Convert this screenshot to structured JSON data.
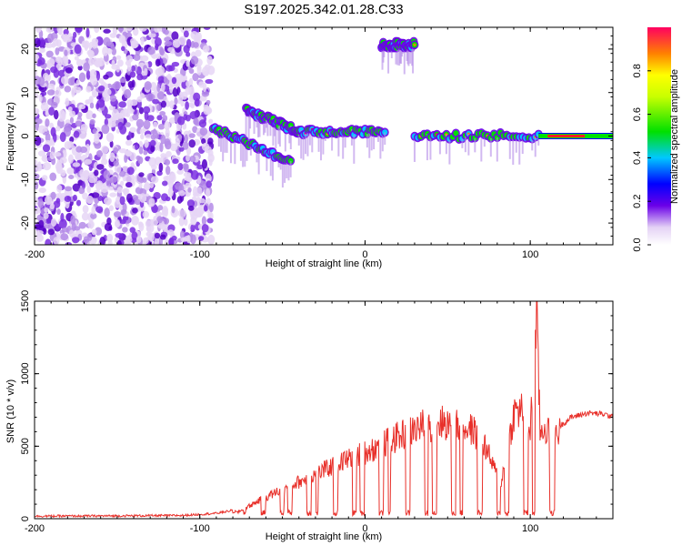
{
  "title": "S197.2025.342.01.28.C33",
  "chart_data": [
    {
      "type": "heatmap",
      "name": "spectrogram",
      "xlabel": "Height of straight line (km)",
      "ylabel": "Frequency (Hz)",
      "xlim": [
        -200,
        150
      ],
      "ylim": [
        -25,
        25
      ],
      "xticks": [
        -200,
        -100,
        0,
        100
      ],
      "yticks": [
        -20,
        -10,
        0,
        10,
        20
      ],
      "colorbar": {
        "label": "Normalized spectral amplitude",
        "range": [
          0,
          1
        ],
        "ticks": [
          0.0,
          0.2,
          0.4,
          0.6,
          0.8
        ]
      },
      "features": [
        {
          "name": "noise-field",
          "x_range": [
            -200,
            -93
          ],
          "f_range": [
            -25,
            25
          ],
          "level": 0.1
        },
        {
          "name": "tone-segment-a",
          "x_range": [
            -92,
            -45
          ],
          "f_start": 2,
          "f_end": -6,
          "level": 0.3
        },
        {
          "name": "tone-segment-b",
          "x_range": [
            -72,
            -40
          ],
          "f_start": 6,
          "f_end": 1,
          "level": 0.3
        },
        {
          "name": "tone-segment-c",
          "x_range": [
            -40,
            12
          ],
          "f_start": 1,
          "f_end": 1,
          "level": 0.35
        },
        {
          "name": "tone-segment-d",
          "x_range": [
            10,
            30
          ],
          "f_start": 21,
          "f_end": 21,
          "level": 0.4
        },
        {
          "name": "tone-segment-e",
          "x_range": [
            30,
            105
          ],
          "f_start": 0,
          "f_end": 0,
          "level": 0.3
        },
        {
          "name": "tone-segment-f",
          "x_range": [
            105,
            150
          ],
          "f_start": 0,
          "f_end": 0,
          "level": 1.0
        }
      ]
    },
    {
      "type": "line",
      "name": "snr",
      "xlabel": "Height of straight line (km)",
      "ylabel": "SNR (10 * v/v)",
      "xlim": [
        -200,
        150
      ],
      "ylim": [
        0,
        1500
      ],
      "xticks": [
        -200,
        -100,
        0,
        100
      ],
      "yticks": [
        0,
        500,
        1000,
        1500
      ],
      "color": "#e8302a",
      "series": [
        {
          "name": "SNR",
          "x": [
            -200,
            -150,
            -110,
            -90,
            -75,
            -65,
            -55,
            -45,
            -35,
            -25,
            -15,
            -5,
            5,
            15,
            25,
            35,
            45,
            55,
            65,
            72,
            78,
            82,
            86,
            90,
            95,
            100,
            104,
            106,
            108,
            112,
            115,
            118,
            125,
            135,
            145,
            150
          ],
          "y": [
            10,
            12,
            15,
            30,
            60,
            130,
            190,
            250,
            300,
            360,
            420,
            470,
            520,
            580,
            640,
            690,
            720,
            700,
            660,
            560,
            380,
            250,
            500,
            780,
            820,
            650,
            1500,
            620,
            680,
            650,
            660,
            640,
            700,
            730,
            720,
            700
          ]
        }
      ]
    }
  ]
}
